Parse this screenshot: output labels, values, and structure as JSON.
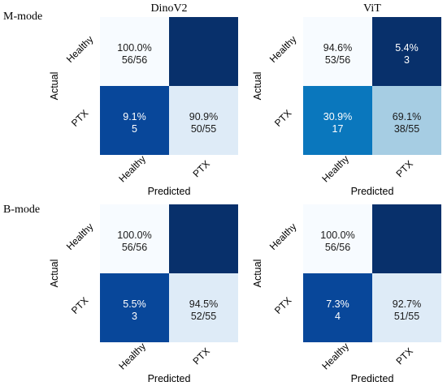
{
  "row_labels": [
    "M-mode",
    "B-mode"
  ],
  "chart_data": [
    {
      "type": "heatmap",
      "title": "DinoV2",
      "xlabel": "Predicted",
      "ylabel": "Actual",
      "x_categories": [
        "Healthy",
        "PTX"
      ],
      "y_categories": [
        "Healthy",
        "PTX"
      ],
      "cells": [
        [
          {
            "pct": "100.0%",
            "count": "56/56",
            "fraction": 1.0
          },
          {
            "pct": "",
            "count": "",
            "fraction": 0.0
          }
        ],
        [
          {
            "pct": "9.1%",
            "count": "5",
            "fraction": 0.091
          },
          {
            "pct": "90.9%",
            "count": "50/55",
            "fraction": 0.909
          }
        ]
      ]
    },
    {
      "type": "heatmap",
      "title": "ViT",
      "xlabel": "Predicted",
      "ylabel": "Actual",
      "x_categories": [
        "Healthy",
        "PTX"
      ],
      "y_categories": [
        "Healthy",
        "PTX"
      ],
      "cells": [
        [
          {
            "pct": "94.6%",
            "count": "53/56",
            "fraction": 0.946
          },
          {
            "pct": "5.4%",
            "count": "3",
            "fraction": 0.054
          }
        ],
        [
          {
            "pct": "30.9%",
            "count": "17",
            "fraction": 0.309
          },
          {
            "pct": "69.1%",
            "count": "38/55",
            "fraction": 0.691
          }
        ]
      ]
    },
    {
      "type": "heatmap",
      "title": "",
      "xlabel": "Predicted",
      "ylabel": "Actual",
      "x_categories": [
        "Healthy",
        "PTX"
      ],
      "y_categories": [
        "Healthy",
        "PTX"
      ],
      "cells": [
        [
          {
            "pct": "100.0%",
            "count": "56/56",
            "fraction": 1.0
          },
          {
            "pct": "",
            "count": "",
            "fraction": 0.0
          }
        ],
        [
          {
            "pct": "5.5%",
            "count": "3",
            "fraction": 0.055
          },
          {
            "pct": "94.5%",
            "count": "52/55",
            "fraction": 0.945
          }
        ]
      ]
    },
    {
      "type": "heatmap",
      "title": "",
      "xlabel": "Predicted",
      "ylabel": "Actual",
      "x_categories": [
        "Healthy",
        "PTX"
      ],
      "y_categories": [
        "Healthy",
        "PTX"
      ],
      "cells": [
        [
          {
            "pct": "100.0%",
            "count": "56/56",
            "fraction": 1.0
          },
          {
            "pct": "",
            "count": "",
            "fraction": 0.0
          }
        ],
        [
          {
            "pct": "7.3%",
            "count": "4",
            "fraction": 0.073
          },
          {
            "pct": "92.7%",
            "count": "51/55",
            "fraction": 0.927
          }
        ]
      ]
    }
  ],
  "colors": {
    "cells": {
      "1.0": "#f7fbff",
      "0.946": "#f7fbff",
      "0.945": "#deebf7",
      "0.927": "#deebf7",
      "0.909": "#deebf7",
      "0.691": "#a6cde3",
      "0.309": "#0a77bd",
      "0.091": "#08479a",
      "0.073": "#08479a",
      "0.055": "#08479a",
      "0.054": "#08306b",
      "0.0": "#08306b"
    },
    "dark_text": "#1a1a1a",
    "light_text": "#ffffff"
  }
}
